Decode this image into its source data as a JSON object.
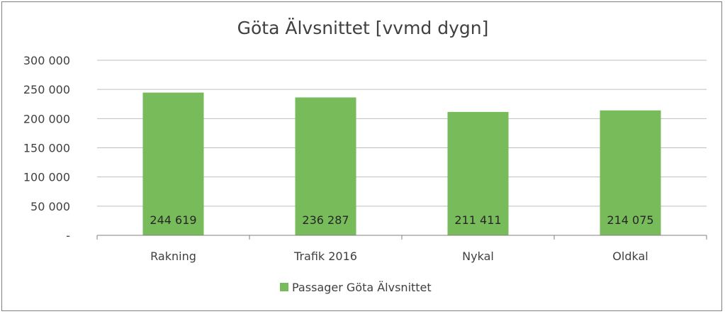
{
  "chart_data": {
    "type": "bar",
    "title": "Göta Älvsnittet [vvmd dygn]",
    "categories": [
      "Rakning",
      "Trafik 2016",
      "Nykal",
      "Oldkal"
    ],
    "series": [
      {
        "name": "Passager Göta Älvsnittet",
        "values": [
          244619,
          236287,
          211411,
          214075
        ],
        "data_labels": [
          "244 619",
          "236 287",
          "211 411",
          "214 075"
        ],
        "color": "#77bb5a"
      }
    ],
    "ylim": [
      0,
      300000
    ],
    "yticks": [
      0,
      50000,
      100000,
      150000,
      200000,
      250000,
      300000
    ],
    "ytick_labels": [
      "-",
      "50 000",
      "100 000",
      "150 000",
      "200 000",
      "250 000",
      "300 000"
    ],
    "grid": true,
    "legend": "bottom"
  }
}
